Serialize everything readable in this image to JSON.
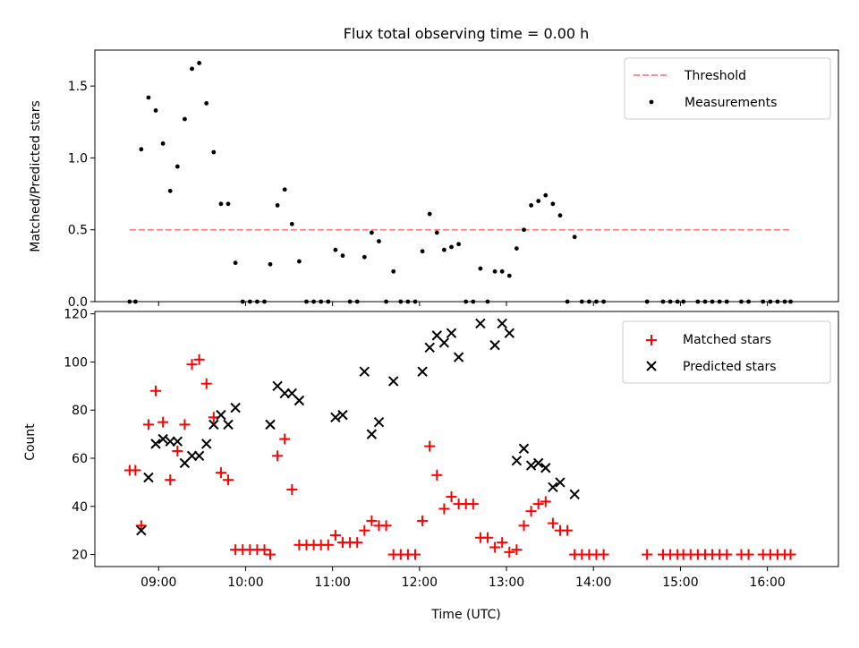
{
  "figure": {
    "title": "Flux total observing time = 0.00 h",
    "xlabel": "Time (UTC)"
  },
  "colors": {
    "threshold": "#ff7f7f",
    "measurements": "#000000",
    "matched": "#ff0000",
    "predicted": "#000000"
  },
  "chart_data": [
    {
      "type": "scatter",
      "ylabel": "Matched/Predicted stars",
      "ylim": [
        0,
        1.75
      ],
      "yticks": [
        0.0,
        0.5,
        1.0,
        1.5
      ],
      "ytick_labels": [
        "0.0",
        "0.5",
        "1.0",
        "1.5"
      ],
      "xlim": [
        "08:16",
        "16:49"
      ],
      "legend_position": "top-right",
      "grid": false,
      "threshold": {
        "name": "Threshold",
        "value": 0.5,
        "x_range": [
          "08:40",
          "16:16"
        ]
      },
      "series": [
        {
          "name": "Measurements",
          "points": [
            [
              "08:40",
              0
            ],
            [
              "08:44",
              0
            ],
            [
              "08:48",
              1.06
            ],
            [
              "08:53",
              1.42
            ],
            [
              "08:58",
              1.33
            ],
            [
              "09:03",
              1.1
            ],
            [
              "09:08",
              0.77
            ],
            [
              "09:13",
              0.94
            ],
            [
              "09:18",
              1.27
            ],
            [
              "09:23",
              1.62
            ],
            [
              "09:28",
              1.66
            ],
            [
              "09:33",
              1.38
            ],
            [
              "09:38",
              1.04
            ],
            [
              "09:43",
              0.68
            ],
            [
              "09:48",
              0.68
            ],
            [
              "09:53",
              0.27
            ],
            [
              "09:58",
              0
            ],
            [
              "10:03",
              0
            ],
            [
              "10:08",
              0
            ],
            [
              "10:13",
              0
            ],
            [
              "10:17",
              0.26
            ],
            [
              "10:22",
              0.67
            ],
            [
              "10:27",
              0.78
            ],
            [
              "10:32",
              0.54
            ],
            [
              "10:37",
              0.28
            ],
            [
              "10:42",
              0
            ],
            [
              "10:47",
              0
            ],
            [
              "10:52",
              0
            ],
            [
              "10:57",
              0
            ],
            [
              "11:02",
              0.36
            ],
            [
              "11:07",
              0.32
            ],
            [
              "11:12",
              0
            ],
            [
              "11:17",
              0
            ],
            [
              "11:22",
              0.31
            ],
            [
              "11:27",
              0.48
            ],
            [
              "11:32",
              0.42
            ],
            [
              "11:37",
              0
            ],
            [
              "11:42",
              0.21
            ],
            [
              "11:47",
              0
            ],
            [
              "11:52",
              0
            ],
            [
              "11:57",
              0
            ],
            [
              "12:02",
              0.35
            ],
            [
              "12:07",
              0.61
            ],
            [
              "12:12",
              0.48
            ],
            [
              "12:17",
              0.36
            ],
            [
              "12:22",
              0.38
            ],
            [
              "12:27",
              0.4
            ],
            [
              "12:32",
              0
            ],
            [
              "12:37",
              0
            ],
            [
              "12:42",
              0.23
            ],
            [
              "12:47",
              0
            ],
            [
              "12:52",
              0.21
            ],
            [
              "12:57",
              0.21
            ],
            [
              "13:02",
              0.18
            ],
            [
              "13:07",
              0.37
            ],
            [
              "13:12",
              0.5
            ],
            [
              "13:17",
              0.67
            ],
            [
              "13:22",
              0.7
            ],
            [
              "13:27",
              0.74
            ],
            [
              "13:32",
              0.68
            ],
            [
              "13:37",
              0.6
            ],
            [
              "13:42",
              0
            ],
            [
              "13:47",
              0.45
            ],
            [
              "13:52",
              0
            ],
            [
              "13:57",
              0
            ],
            [
              "14:02",
              0
            ],
            [
              "14:07",
              0
            ],
            [
              "14:37",
              0
            ],
            [
              "14:48",
              0
            ],
            [
              "14:53",
              0
            ],
            [
              "14:58",
              0
            ],
            [
              "15:02",
              0
            ],
            [
              "15:12",
              0
            ],
            [
              "15:17",
              0
            ],
            [
              "15:22",
              0
            ],
            [
              "15:27",
              0
            ],
            [
              "15:32",
              0
            ],
            [
              "15:42",
              0
            ],
            [
              "15:47",
              0
            ],
            [
              "15:57",
              0
            ],
            [
              "16:02",
              0
            ],
            [
              "16:07",
              0
            ],
            [
              "16:12",
              0
            ],
            [
              "16:16",
              0
            ]
          ]
        }
      ]
    },
    {
      "type": "scatter",
      "ylabel": "Count",
      "ylim": [
        15,
        121
      ],
      "yticks": [
        20,
        40,
        60,
        80,
        100,
        120
      ],
      "ytick_labels": [
        "20",
        "40",
        "60",
        "80",
        "100",
        "120"
      ],
      "xlim": [
        "08:16",
        "16:49"
      ],
      "xticks": [
        "09:00",
        "10:00",
        "11:00",
        "12:00",
        "13:00",
        "14:00",
        "15:00",
        "16:00"
      ],
      "xtick_labels": [
        "09:00",
        "10:00",
        "11:00",
        "12:00",
        "13:00",
        "14:00",
        "15:00",
        "16:00"
      ],
      "legend_position": "top-right",
      "grid": false,
      "series": [
        {
          "name": "Matched stars",
          "marker": "+",
          "points": [
            [
              "08:40",
              55
            ],
            [
              "08:44",
              55
            ],
            [
              "08:48",
              32
            ],
            [
              "08:53",
              74
            ],
            [
              "08:58",
              88
            ],
            [
              "09:03",
              75
            ],
            [
              "09:08",
              51
            ],
            [
              "09:13",
              63
            ],
            [
              "09:18",
              74
            ],
            [
              "09:23",
              99
            ],
            [
              "09:28",
              101
            ],
            [
              "09:33",
              91
            ],
            [
              "09:38",
              77
            ],
            [
              "09:43",
              54
            ],
            [
              "09:48",
              51
            ],
            [
              "09:53",
              22
            ],
            [
              "09:58",
              22
            ],
            [
              "10:03",
              22
            ],
            [
              "10:08",
              22
            ],
            [
              "10:13",
              22
            ],
            [
              "10:17",
              20
            ],
            [
              "10:22",
              61
            ],
            [
              "10:27",
              68
            ],
            [
              "10:32",
              47
            ],
            [
              "10:37",
              24
            ],
            [
              "10:42",
              24
            ],
            [
              "10:47",
              24
            ],
            [
              "10:52",
              24
            ],
            [
              "10:57",
              24
            ],
            [
              "11:02",
              28
            ],
            [
              "11:07",
              25
            ],
            [
              "11:12",
              25
            ],
            [
              "11:17",
              25
            ],
            [
              "11:22",
              30
            ],
            [
              "11:27",
              34
            ],
            [
              "11:32",
              32
            ],
            [
              "11:37",
              32
            ],
            [
              "11:42",
              20
            ],
            [
              "11:47",
              20
            ],
            [
              "11:52",
              20
            ],
            [
              "11:57",
              20
            ],
            [
              "12:02",
              34
            ],
            [
              "12:07",
              65
            ],
            [
              "12:12",
              53
            ],
            [
              "12:17",
              39
            ],
            [
              "12:22",
              44
            ],
            [
              "12:27",
              41
            ],
            [
              "12:32",
              41
            ],
            [
              "12:37",
              41
            ],
            [
              "12:42",
              27
            ],
            [
              "12:47",
              27
            ],
            [
              "12:52",
              23
            ],
            [
              "12:57",
              25
            ],
            [
              "13:02",
              21
            ],
            [
              "13:07",
              22
            ],
            [
              "13:12",
              32
            ],
            [
              "13:17",
              38
            ],
            [
              "13:22",
              41
            ],
            [
              "13:27",
              42
            ],
            [
              "13:32",
              33
            ],
            [
              "13:37",
              30
            ],
            [
              "13:42",
              30
            ],
            [
              "13:47",
              20
            ],
            [
              "13:52",
              20
            ],
            [
              "13:57",
              20
            ],
            [
              "14:02",
              20
            ],
            [
              "14:07",
              20
            ],
            [
              "14:37",
              20
            ],
            [
              "14:48",
              20
            ],
            [
              "14:53",
              20
            ],
            [
              "14:58",
              20
            ],
            [
              "15:02",
              20
            ],
            [
              "15:07",
              20
            ],
            [
              "15:12",
              20
            ],
            [
              "15:17",
              20
            ],
            [
              "15:22",
              20
            ],
            [
              "15:27",
              20
            ],
            [
              "15:32",
              20
            ],
            [
              "15:42",
              20
            ],
            [
              "15:47",
              20
            ],
            [
              "15:57",
              20
            ],
            [
              "16:02",
              20
            ],
            [
              "16:07",
              20
            ],
            [
              "16:12",
              20
            ],
            [
              "16:16",
              20
            ]
          ]
        },
        {
          "name": "Predicted stars",
          "marker": "x",
          "points": [
            [
              "08:48",
              30
            ],
            [
              "08:53",
              52
            ],
            [
              "08:58",
              66
            ],
            [
              "09:03",
              68
            ],
            [
              "09:08",
              67
            ],
            [
              "09:13",
              67
            ],
            [
              "09:18",
              58
            ],
            [
              "09:23",
              61
            ],
            [
              "09:28",
              61
            ],
            [
              "09:33",
              66
            ],
            [
              "09:38",
              74
            ],
            [
              "09:43",
              78
            ],
            [
              "09:48",
              74
            ],
            [
              "09:53",
              81
            ],
            [
              "10:17",
              74
            ],
            [
              "10:22",
              90
            ],
            [
              "10:27",
              87
            ],
            [
              "10:32",
              87
            ],
            [
              "10:37",
              84
            ],
            [
              "11:02",
              77
            ],
            [
              "11:07",
              78
            ],
            [
              "11:22",
              96
            ],
            [
              "11:27",
              70
            ],
            [
              "11:32",
              75
            ],
            [
              "11:42",
              92
            ],
            [
              "12:02",
              96
            ],
            [
              "12:07",
              106
            ],
            [
              "12:12",
              111
            ],
            [
              "12:17",
              108
            ],
            [
              "12:22",
              112
            ],
            [
              "12:27",
              102
            ],
            [
              "12:42",
              116
            ],
            [
              "12:52",
              107
            ],
            [
              "12:57",
              116
            ],
            [
              "13:02",
              112
            ],
            [
              "13:07",
              59
            ],
            [
              "13:12",
              64
            ],
            [
              "13:17",
              57
            ],
            [
              "13:22",
              58
            ],
            [
              "13:27",
              56
            ],
            [
              "13:32",
              48
            ],
            [
              "13:37",
              50
            ],
            [
              "13:47",
              45
            ]
          ]
        }
      ]
    }
  ]
}
